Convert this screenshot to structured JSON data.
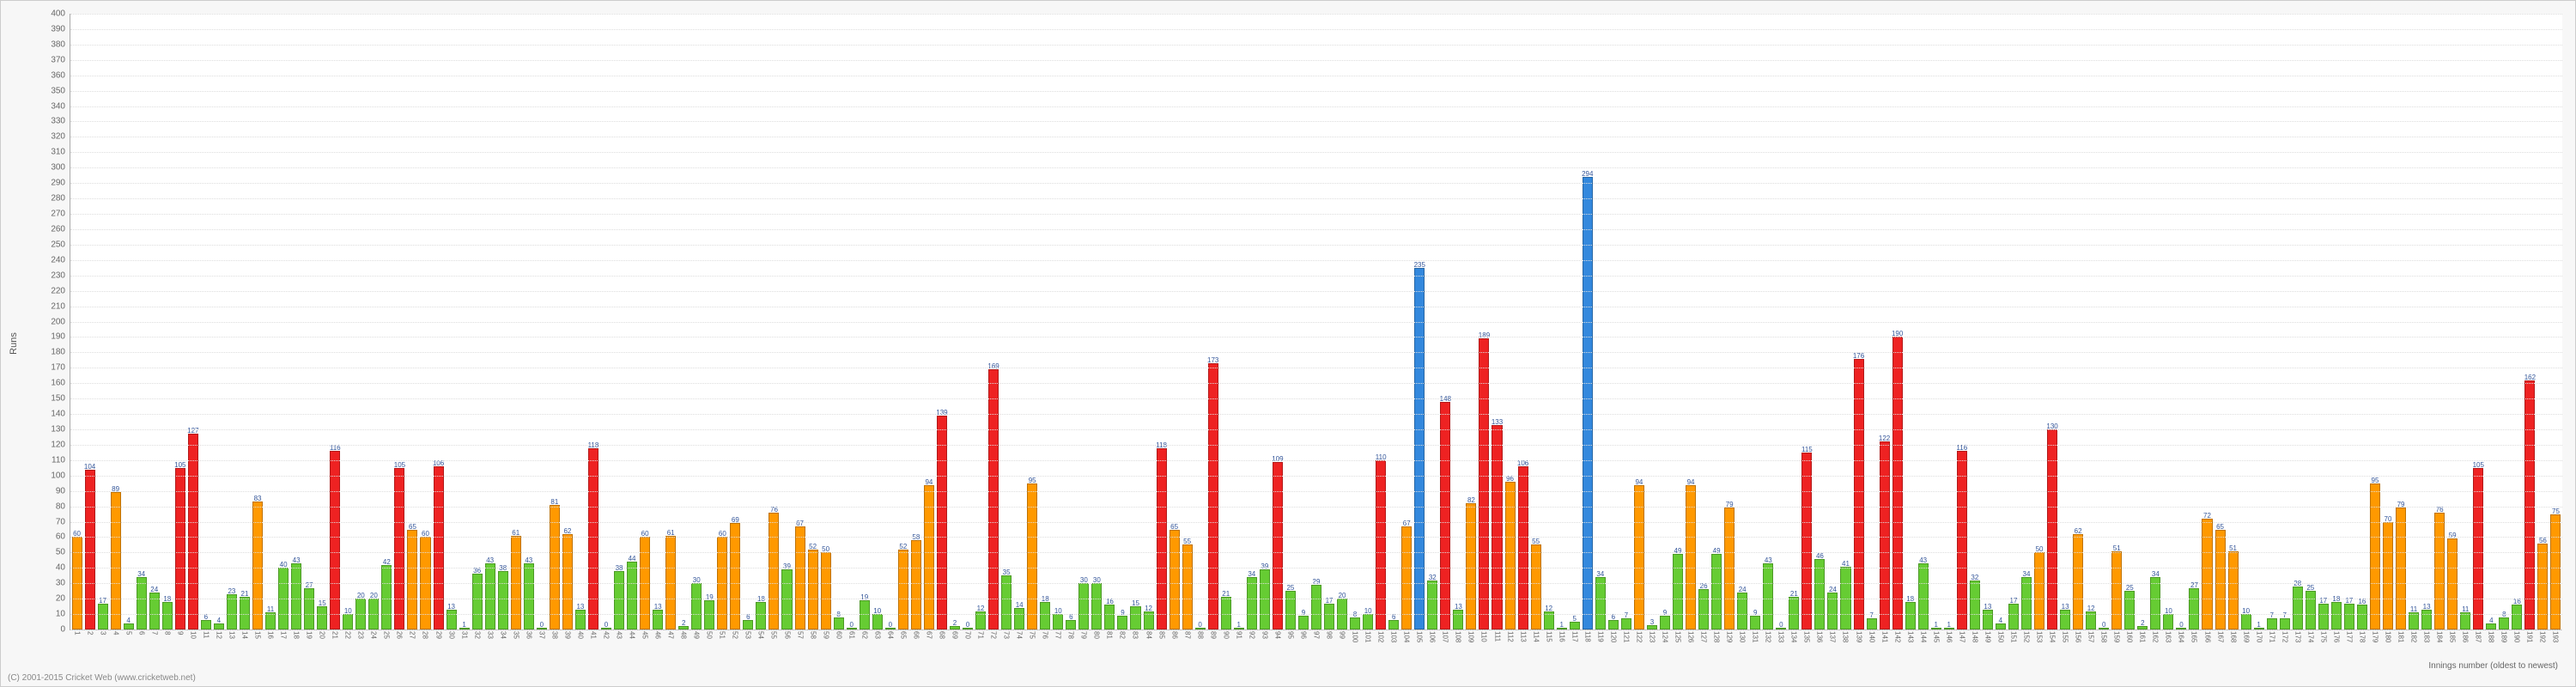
{
  "chart": {
    "type": "bar",
    "ylabel": "Runs",
    "xlabel": "Innings number (oldest to newest)",
    "footer": "(C) 2001-2015 Cricket Web (www.cricketweb.net)",
    "ymax": 400,
    "ytick_step": 10,
    "background_color": "#ffffff",
    "grid_color": "#dddddd",
    "color_green": "#66cc33",
    "color_orange": "#ff9900",
    "color_red": "#ee2222",
    "color_blue": "#3388dd",
    "bars": [
      {
        "v": 60,
        "c": "orange"
      },
      {
        "v": 104,
        "c": "red"
      },
      {
        "v": 17,
        "c": "green"
      },
      {
        "v": 89,
        "c": "orange"
      },
      {
        "v": 4,
        "c": "green"
      },
      {
        "v": 34,
        "c": "green"
      },
      {
        "v": 24,
        "c": "green"
      },
      {
        "v": 18,
        "c": "green"
      },
      {
        "v": 105,
        "c": "red"
      },
      {
        "v": 127,
        "c": "red"
      },
      {
        "v": 6,
        "c": "green"
      },
      {
        "v": 4,
        "c": "green"
      },
      {
        "v": 23,
        "c": "green"
      },
      {
        "v": 21,
        "c": "green"
      },
      {
        "v": 83,
        "c": "orange"
      },
      {
        "v": 11,
        "c": "green"
      },
      {
        "v": 40,
        "c": "green"
      },
      {
        "v": 43,
        "c": "green"
      },
      {
        "v": 27,
        "c": "green"
      },
      {
        "v": 15,
        "c": "green"
      },
      {
        "v": 116,
        "c": "red"
      },
      {
        "v": 10,
        "c": "green"
      },
      {
        "v": 20,
        "c": "green"
      },
      {
        "v": 20,
        "c": "green"
      },
      {
        "v": 42,
        "c": "green"
      },
      {
        "v": 105,
        "c": "red"
      },
      {
        "v": 65,
        "c": "orange"
      },
      {
        "v": 60,
        "c": "orange"
      },
      {
        "v": 106,
        "c": "red"
      },
      {
        "v": 13,
        "c": "green"
      },
      {
        "v": 1,
        "c": "green"
      },
      {
        "v": 36,
        "c": "green"
      },
      {
        "v": 43,
        "c": "green"
      },
      {
        "v": 38,
        "c": "green"
      },
      {
        "v": 61,
        "c": "orange"
      },
      {
        "v": 43,
        "c": "green"
      },
      {
        "v": 0,
        "c": "green"
      },
      {
        "v": 81,
        "c": "orange"
      },
      {
        "v": 62,
        "c": "orange"
      },
      {
        "v": 13,
        "c": "green"
      },
      {
        "v": 118,
        "c": "red"
      },
      {
        "v": 0,
        "c": "green"
      },
      {
        "v": 38,
        "c": "green"
      },
      {
        "v": 44,
        "c": "green"
      },
      {
        "v": 60,
        "c": "orange"
      },
      {
        "v": 13,
        "c": "green"
      },
      {
        "v": 61,
        "c": "orange"
      },
      {
        "v": 2,
        "c": "green"
      },
      {
        "v": 30,
        "c": "green"
      },
      {
        "v": 19,
        "c": "green"
      },
      {
        "v": 60,
        "c": "orange"
      },
      {
        "v": 69,
        "c": "orange"
      },
      {
        "v": 6,
        "c": "green"
      },
      {
        "v": 18,
        "c": "green"
      },
      {
        "v": 76,
        "c": "orange"
      },
      {
        "v": 39,
        "c": "green"
      },
      {
        "v": 67,
        "c": "orange"
      },
      {
        "v": 52,
        "c": "orange"
      },
      {
        "v": 50,
        "c": "orange"
      },
      {
        "v": 8,
        "c": "green"
      },
      {
        "v": 0,
        "c": "green"
      },
      {
        "v": 19,
        "c": "green"
      },
      {
        "v": 10,
        "c": "green"
      },
      {
        "v": 0,
        "c": "green"
      },
      {
        "v": 52,
        "c": "orange"
      },
      {
        "v": 58,
        "c": "orange"
      },
      {
        "v": 94,
        "c": "orange"
      },
      {
        "v": 139,
        "c": "red"
      },
      {
        "v": 2,
        "c": "green"
      },
      {
        "v": 0,
        "c": "green"
      },
      {
        "v": 12,
        "c": "green"
      },
      {
        "v": 169,
        "c": "red"
      },
      {
        "v": 35,
        "c": "green"
      },
      {
        "v": 14,
        "c": "green"
      },
      {
        "v": 95,
        "c": "orange"
      },
      {
        "v": 18,
        "c": "green"
      },
      {
        "v": 10,
        "c": "green"
      },
      {
        "v": 6,
        "c": "green"
      },
      {
        "v": 30,
        "c": "green"
      },
      {
        "v": 30,
        "c": "green"
      },
      {
        "v": 16,
        "c": "green"
      },
      {
        "v": 9,
        "c": "green"
      },
      {
        "v": 15,
        "c": "green"
      },
      {
        "v": 12,
        "c": "green"
      },
      {
        "v": 118,
        "c": "red"
      },
      {
        "v": 65,
        "c": "orange"
      },
      {
        "v": 55,
        "c": "orange"
      },
      {
        "v": 0,
        "c": "green"
      },
      {
        "v": 173,
        "c": "red"
      },
      {
        "v": 21,
        "c": "green"
      },
      {
        "v": 1,
        "c": "green"
      },
      {
        "v": 34,
        "c": "green"
      },
      {
        "v": 39,
        "c": "green"
      },
      {
        "v": 109,
        "c": "red"
      },
      {
        "v": 25,
        "c": "green"
      },
      {
        "v": 9,
        "c": "green"
      },
      {
        "v": 29,
        "c": "green"
      },
      {
        "v": 17,
        "c": "green"
      },
      {
        "v": 20,
        "c": "green"
      },
      {
        "v": 8,
        "c": "green"
      },
      {
        "v": 10,
        "c": "green"
      },
      {
        "v": 110,
        "c": "red"
      },
      {
        "v": 6,
        "c": "green"
      },
      {
        "v": 67,
        "c": "orange"
      },
      {
        "v": 235,
        "c": "blue"
      },
      {
        "v": 32,
        "c": "green"
      },
      {
        "v": 148,
        "c": "red"
      },
      {
        "v": 13,
        "c": "green"
      },
      {
        "v": 82,
        "c": "orange"
      },
      {
        "v": 189,
        "c": "red"
      },
      {
        "v": 133,
        "c": "red"
      },
      {
        "v": 96,
        "c": "orange"
      },
      {
        "v": 106,
        "c": "red"
      },
      {
        "v": 55,
        "c": "orange"
      },
      {
        "v": 12,
        "c": "green"
      },
      {
        "v": 1,
        "c": "green"
      },
      {
        "v": 5,
        "c": "green"
      },
      {
        "v": 294,
        "c": "blue"
      },
      {
        "v": 34,
        "c": "green"
      },
      {
        "v": 6,
        "c": "green"
      },
      {
        "v": 7,
        "c": "green"
      },
      {
        "v": 94,
        "c": "orange"
      },
      {
        "v": 3,
        "c": "green"
      },
      {
        "v": 9,
        "c": "green"
      },
      {
        "v": 49,
        "c": "green"
      },
      {
        "v": 94,
        "c": "orange"
      },
      {
        "v": 26,
        "c": "green"
      },
      {
        "v": 49,
        "c": "green"
      },
      {
        "v": 79,
        "c": "orange"
      },
      {
        "v": 24,
        "c": "green"
      },
      {
        "v": 9,
        "c": "green"
      },
      {
        "v": 43,
        "c": "green"
      },
      {
        "v": 0,
        "c": "green"
      },
      {
        "v": 21,
        "c": "green"
      },
      {
        "v": 115,
        "c": "red"
      },
      {
        "v": 46,
        "c": "green"
      },
      {
        "v": 24,
        "c": "green"
      },
      {
        "v": 41,
        "c": "green"
      },
      {
        "v": 176,
        "c": "red"
      },
      {
        "v": 7,
        "c": "green"
      },
      {
        "v": 122,
        "c": "red"
      },
      {
        "v": 190,
        "c": "red"
      },
      {
        "v": 18,
        "c": "green"
      },
      {
        "v": 43,
        "c": "green"
      },
      {
        "v": 1,
        "c": "green"
      },
      {
        "v": 1,
        "c": "green"
      },
      {
        "v": 116,
        "c": "red"
      },
      {
        "v": 32,
        "c": "green"
      },
      {
        "v": 13,
        "c": "green"
      },
      {
        "v": 4,
        "c": "green"
      },
      {
        "v": 17,
        "c": "green"
      },
      {
        "v": 34,
        "c": "green"
      },
      {
        "v": 50,
        "c": "orange"
      },
      {
        "v": 130,
        "c": "red"
      },
      {
        "v": 13,
        "c": "green"
      },
      {
        "v": 62,
        "c": "orange"
      },
      {
        "v": 12,
        "c": "green"
      },
      {
        "v": 0,
        "c": "green"
      },
      {
        "v": 51,
        "c": "orange"
      },
      {
        "v": 25,
        "c": "green"
      },
      {
        "v": 2,
        "c": "green"
      },
      {
        "v": 34,
        "c": "green"
      },
      {
        "v": 10,
        "c": "green"
      },
      {
        "v": 0,
        "c": "green"
      },
      {
        "v": 27,
        "c": "green"
      },
      {
        "v": 72,
        "c": "orange"
      },
      {
        "v": 65,
        "c": "orange"
      },
      {
        "v": 51,
        "c": "orange"
      },
      {
        "v": 10,
        "c": "green"
      },
      {
        "v": 1,
        "c": "green"
      },
      {
        "v": 7,
        "c": "green"
      },
      {
        "v": 7,
        "c": "green"
      },
      {
        "v": 28,
        "c": "green"
      },
      {
        "v": 25,
        "c": "green"
      },
      {
        "v": 17,
        "c": "green"
      },
      {
        "v": 18,
        "c": "green"
      },
      {
        "v": 17,
        "c": "green"
      },
      {
        "v": 16,
        "c": "green"
      },
      {
        "v": 95,
        "c": "orange"
      },
      {
        "v": 70,
        "c": "orange"
      },
      {
        "v": 79,
        "c": "orange"
      },
      {
        "v": 11,
        "c": "green"
      },
      {
        "v": 13,
        "c": "green"
      },
      {
        "v": 76,
        "c": "orange"
      },
      {
        "v": 59,
        "c": "orange"
      },
      {
        "v": 11,
        "c": "green"
      },
      {
        "v": 105,
        "c": "red"
      },
      {
        "v": 4,
        "c": "green"
      },
      {
        "v": 8,
        "c": "green"
      },
      {
        "v": 16,
        "c": "green"
      },
      {
        "v": 162,
        "c": "red"
      },
      {
        "v": 56,
        "c": "orange"
      },
      {
        "v": 75,
        "c": "orange"
      }
    ]
  }
}
